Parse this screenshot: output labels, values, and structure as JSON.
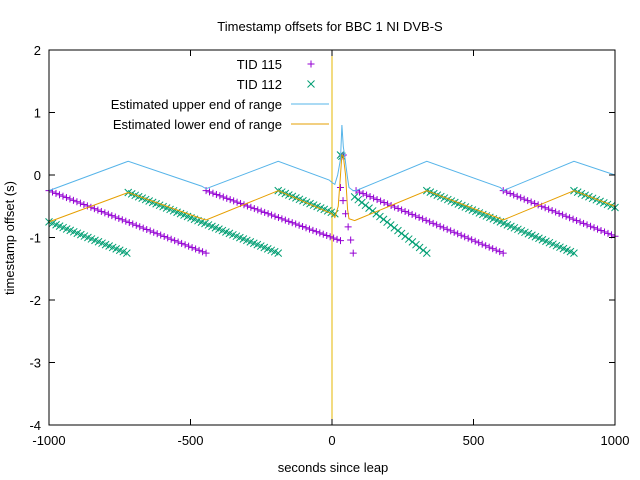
{
  "chart_data": {
    "type": "scatter",
    "title": "Timestamp offsets for BBC 1 NI DVB-S",
    "xlabel": "seconds since leap",
    "ylabel": "timestamp offset (s)",
    "xlim": [
      -1000,
      1000
    ],
    "ylim": [
      -4,
      2
    ],
    "x_ticks": [
      -1000,
      -500,
      0,
      500,
      1000
    ],
    "x_tick_labels": [
      "-1000",
      "-500",
      "0",
      "500",
      "1000"
    ],
    "y_ticks": [
      -4,
      -3,
      -2,
      -1,
      0,
      1,
      2
    ],
    "y_tick_labels": [
      "-4",
      "-3",
      "-2",
      "-1",
      "0",
      "1",
      "2"
    ],
    "grid": false,
    "legend_position": "top-center",
    "markers": [
      {
        "x": 0,
        "color": "#e6b700"
      }
    ],
    "series": [
      {
        "name": "TID 115",
        "kind": "scatter",
        "marker": "plus",
        "color": "#9400d3",
        "segments": [
          {
            "x0": -1000,
            "y0": -0.25,
            "x1": -445,
            "y1": -1.25,
            "n": 46
          },
          {
            "x0": -445,
            "y0": -0.25,
            "x1": 30,
            "y1": -1.05,
            "n": 40
          },
          {
            "x0": 30,
            "y0": -0.2,
            "x1": 75,
            "y1": -1.25,
            "n": 6
          },
          {
            "x0": 85,
            "y0": -0.25,
            "x1": 605,
            "y1": -1.25,
            "n": 43
          },
          {
            "x0": 605,
            "y0": -0.25,
            "x1": 1000,
            "y1": -0.98,
            "n": 33
          }
        ],
        "points": [
          [
            35,
            0.3
          ],
          [
            40,
            0.32
          ]
        ]
      },
      {
        "name": "TID 112",
        "kind": "scatter",
        "marker": "cross",
        "color": "#009e73",
        "segments": [
          {
            "x0": -1000,
            "y0": -0.75,
            "x1": -725,
            "y1": -1.25,
            "n": 23
          },
          {
            "x0": -720,
            "y0": -0.28,
            "x1": -190,
            "y1": -1.25,
            "n": 44
          },
          {
            "x0": -190,
            "y0": -0.25,
            "x1": 10,
            "y1": -0.62,
            "n": 17
          },
          {
            "x0": 80,
            "y0": -0.35,
            "x1": 335,
            "y1": -1.25,
            "n": 21
          },
          {
            "x0": 335,
            "y0": -0.25,
            "x1": 855,
            "y1": -1.25,
            "n": 43
          },
          {
            "x0": 855,
            "y0": -0.25,
            "x1": 1000,
            "y1": -0.52,
            "n": 12
          }
        ],
        "points": [
          [
            30,
            0.32
          ],
          [
            35,
            0.3
          ]
        ]
      },
      {
        "name": "Estimated upper end of range",
        "kind": "line",
        "color": "#56b4e9",
        "points": [
          [
            -1000,
            -0.25
          ],
          [
            -720,
            0.22
          ],
          [
            -460,
            -0.18
          ],
          [
            -445,
            -0.22
          ],
          [
            -190,
            0.22
          ],
          [
            -10,
            -0.08
          ],
          [
            0,
            -0.12
          ],
          [
            10,
            -0.15
          ],
          [
            20,
            0.0
          ],
          [
            30,
            0.25
          ],
          [
            35,
            0.8
          ],
          [
            40,
            0.45
          ],
          [
            45,
            0.3
          ],
          [
            55,
            -0.05
          ],
          [
            60,
            -0.2
          ],
          [
            75,
            -0.25
          ],
          [
            85,
            -0.25
          ],
          [
            335,
            0.22
          ],
          [
            595,
            -0.2
          ],
          [
            605,
            -0.25
          ],
          [
            855,
            0.22
          ],
          [
            1000,
            0.0
          ]
        ]
      },
      {
        "name": "Estimated lower end of range",
        "kind": "line",
        "color": "#e69f00",
        "points": [
          [
            -1000,
            -0.75
          ],
          [
            -720,
            -0.28
          ],
          [
            -460,
            -0.7
          ],
          [
            -445,
            -0.72
          ],
          [
            -190,
            -0.25
          ],
          [
            0,
            -0.62
          ],
          [
            10,
            -0.68
          ],
          [
            22,
            -0.5
          ],
          [
            30,
            0.0
          ],
          [
            35,
            0.32
          ],
          [
            40,
            0.3
          ],
          [
            48,
            0.0
          ],
          [
            55,
            -0.55
          ],
          [
            60,
            -0.7
          ],
          [
            80,
            -0.73
          ],
          [
            85,
            -0.72
          ],
          [
            335,
            -0.25
          ],
          [
            595,
            -0.7
          ],
          [
            605,
            -0.72
          ],
          [
            855,
            -0.25
          ],
          [
            1000,
            -0.5
          ]
        ]
      }
    ]
  }
}
